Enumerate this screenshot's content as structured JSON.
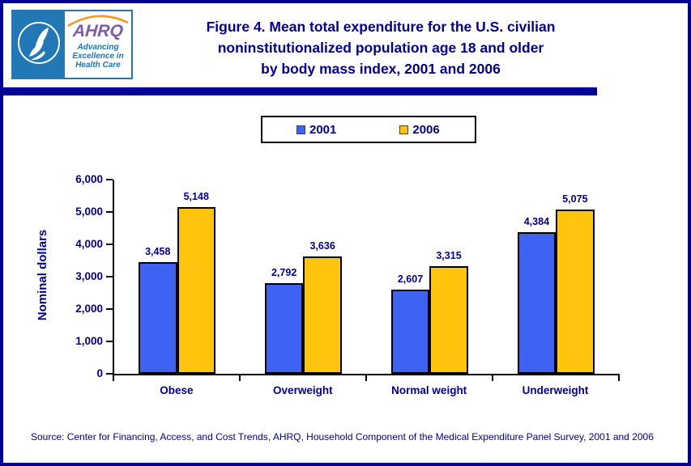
{
  "page": {
    "background": "#FFFFFF",
    "border_color": "#000099"
  },
  "header": {
    "logo": {
      "wordmark": "AHRQ",
      "tagline_lines": [
        "Advancing",
        "Excellence in",
        "Health Care"
      ]
    },
    "title_lines": [
      "Figure 4. Mean total expenditure for the U.S. civilian",
      "noninstitutionalized population age 18 and older",
      "by body mass index, 2001 and 2006"
    ]
  },
  "legend": {
    "items": [
      {
        "label": "2001",
        "color": "#3E63F2"
      },
      {
        "label": "2006",
        "color": "#FFC40D"
      }
    ]
  },
  "chart_data": {
    "type": "bar",
    "title": "Figure 4. Mean total expenditure for the U.S. civilian noninstitutionalized population age 18 and older by body mass index, 2001 and 2006",
    "categories": [
      "Obese",
      "Overweight",
      "Normal weight",
      "Underweight"
    ],
    "series": [
      {
        "name": "2001",
        "color": "#3E63F2",
        "values": [
          3458,
          2792,
          2607,
          4384
        ]
      },
      {
        "name": "2006",
        "color": "#FFC40D",
        "values": [
          5148,
          3636,
          3315,
          5075
        ]
      }
    ],
    "ylabel": "Nominal dollars",
    "xlabel": "",
    "ylim": [
      0,
      6000
    ],
    "ytick_labels": [
      "0",
      "1,000",
      "2,000",
      "3,000",
      "4,000",
      "5,000",
      "6,000"
    ],
    "grid": false,
    "legend_position": "top-center",
    "bar_value_labels": true
  },
  "footer": {
    "source": "Source: Center for Financing, Access, and Cost Trends, AHRQ, Household Component of the Medical Expenditure Panel Survey, 2001 and 2006"
  },
  "colors": {
    "navy": "#000099",
    "axis": "#000000",
    "hhs_blue": "#2178B5",
    "ahrq_purple": "#7E5BA6",
    "tagline_blue": "#1B75BC",
    "arc_orange": "#F7941D"
  }
}
